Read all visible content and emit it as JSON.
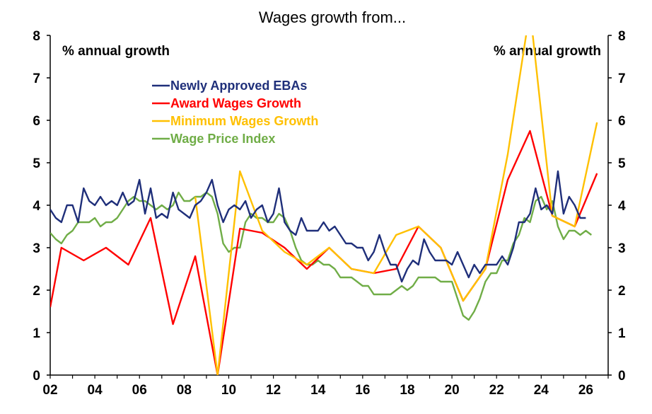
{
  "chart_data": {
    "type": "line",
    "title": "Wages growth from...",
    "left_axis_label": "% annual growth",
    "right_axis_label": "% annual growth",
    "ylim": [
      0,
      8
    ],
    "yticks": [
      0,
      1,
      2,
      3,
      4,
      5,
      6,
      7,
      8
    ],
    "xlim": [
      2002,
      2027
    ],
    "xtick_labels": [
      "02",
      "04",
      "06",
      "08",
      "10",
      "12",
      "14",
      "16",
      "18",
      "20",
      "22",
      "24",
      "26"
    ],
    "grid": false,
    "legend_position": "upper-left",
    "series": [
      {
        "name": "Newly Approved EBAs",
        "color": "#1f2f7a",
        "x": [
          2002.0,
          2002.25,
          2002.5,
          2002.75,
          2003.0,
          2003.25,
          2003.5,
          2003.75,
          2004.0,
          2004.25,
          2004.5,
          2004.75,
          2005.0,
          2005.25,
          2005.5,
          2005.75,
          2006.0,
          2006.25,
          2006.5,
          2006.75,
          2007.0,
          2007.25,
          2007.5,
          2007.75,
          2008.0,
          2008.25,
          2008.5,
          2008.75,
          2009.0,
          2009.25,
          2009.5,
          2009.75,
          2010.0,
          2010.25,
          2010.5,
          2010.75,
          2011.0,
          2011.25,
          2011.5,
          2011.75,
          2012.0,
          2012.25,
          2012.5,
          2012.75,
          2013.0,
          2013.25,
          2013.5,
          2013.75,
          2014.0,
          2014.25,
          2014.5,
          2014.75,
          2015.0,
          2015.25,
          2015.5,
          2015.75,
          2016.0,
          2016.25,
          2016.5,
          2016.75,
          2017.0,
          2017.25,
          2017.5,
          2017.75,
          2018.0,
          2018.25,
          2018.5,
          2018.75,
          2019.0,
          2019.25,
          2019.5,
          2019.75,
          2020.0,
          2020.25,
          2020.5,
          2020.75,
          2021.0,
          2021.25,
          2021.5,
          2021.75,
          2022.0,
          2022.25,
          2022.5,
          2022.75,
          2023.0,
          2023.25,
          2023.5,
          2023.75,
          2024.0,
          2024.25,
          2024.5,
          2024.75,
          2025.0,
          2025.25,
          2025.5,
          2025.75,
          2026.0
        ],
        "values": [
          3.9,
          3.7,
          3.6,
          4.0,
          4.0,
          3.6,
          4.4,
          4.1,
          4.0,
          4.2,
          4.0,
          4.1,
          4.0,
          4.3,
          4.0,
          4.1,
          4.6,
          3.8,
          4.4,
          3.7,
          3.8,
          3.7,
          4.3,
          3.9,
          3.8,
          3.7,
          4.0,
          4.1,
          4.3,
          4.6,
          4.0,
          3.6,
          3.9,
          4.0,
          3.9,
          4.1,
          3.7,
          3.9,
          4.0,
          3.6,
          3.8,
          4.4,
          3.6,
          3.4,
          3.3,
          3.7,
          3.4,
          3.4,
          3.4,
          3.6,
          3.4,
          3.5,
          3.3,
          3.1,
          3.1,
          3.0,
          3.0,
          2.7,
          2.9,
          3.3,
          2.9,
          2.6,
          2.6,
          2.2,
          2.5,
          2.7,
          2.6,
          3.2,
          2.9,
          2.7,
          2.7,
          2.7,
          2.6,
          2.9,
          2.6,
          2.3,
          2.6,
          2.4,
          2.6,
          2.6,
          2.6,
          2.8,
          2.6,
          3.0,
          3.6,
          3.6,
          3.8,
          4.4,
          3.9,
          4.0,
          3.8,
          4.8,
          3.8,
          4.2,
          4.0,
          3.7,
          3.7
        ]
      },
      {
        "name": "Award Wages Growth",
        "color": "#ff0000",
        "x": [
          2002.0,
          2002.5,
          2003.5,
          2004.5,
          2005.5,
          2006.5,
          2007.5,
          2008.5,
          2009.5,
          2010.5,
          2011.5,
          2012.5,
          2013.5,
          2014.5,
          2015.5,
          2016.5,
          2017.5,
          2018.5,
          2019.5,
          2020.5,
          2021.5,
          2022.5,
          2023.5,
          2024.5,
          2025.5,
          2026.5
        ],
        "values": [
          1.6,
          3.0,
          2.7,
          3.0,
          2.6,
          3.7,
          1.2,
          2.8,
          0.0,
          3.45,
          3.35,
          3.0,
          2.5,
          3.0,
          2.5,
          2.4,
          2.5,
          3.5,
          3.0,
          1.75,
          2.5,
          4.6,
          5.75,
          3.75,
          3.5,
          4.75
        ]
      },
      {
        "name": "Minimum Wages Growth",
        "color": "#ffc000",
        "x": [
          2008.5,
          2009.5,
          2010.5,
          2011.5,
          2012.5,
          2013.5,
          2014.5,
          2015.5,
          2016.5,
          2017.5,
          2018.5,
          2019.5,
          2020.5,
          2021.5,
          2022.5,
          2023.5,
          2024.5,
          2025.5,
          2026.5
        ],
        "values": [
          4.2,
          0.0,
          4.8,
          3.4,
          2.9,
          2.6,
          3.0,
          2.5,
          2.4,
          3.3,
          3.5,
          3.0,
          1.75,
          2.5,
          5.2,
          8.6,
          3.75,
          3.5,
          5.95
        ]
      },
      {
        "name": "Wage Price Index",
        "color": "#70ad47",
        "x": [
          2002.0,
          2002.25,
          2002.5,
          2002.75,
          2003.0,
          2003.25,
          2003.5,
          2003.75,
          2004.0,
          2004.25,
          2004.5,
          2004.75,
          2005.0,
          2005.25,
          2005.5,
          2005.75,
          2006.0,
          2006.25,
          2006.5,
          2006.75,
          2007.0,
          2007.25,
          2007.5,
          2007.75,
          2008.0,
          2008.25,
          2008.5,
          2008.75,
          2009.0,
          2009.25,
          2009.5,
          2009.75,
          2010.0,
          2010.25,
          2010.5,
          2010.75,
          2011.0,
          2011.25,
          2011.5,
          2011.75,
          2012.0,
          2012.25,
          2012.5,
          2012.75,
          2013.0,
          2013.25,
          2013.5,
          2013.75,
          2014.0,
          2014.25,
          2014.5,
          2014.75,
          2015.0,
          2015.25,
          2015.5,
          2015.75,
          2016.0,
          2016.25,
          2016.5,
          2016.75,
          2017.0,
          2017.25,
          2017.5,
          2017.75,
          2018.0,
          2018.25,
          2018.5,
          2018.75,
          2019.0,
          2019.25,
          2019.5,
          2019.75,
          2020.0,
          2020.25,
          2020.5,
          2020.75,
          2021.0,
          2021.25,
          2021.5,
          2021.75,
          2022.0,
          2022.25,
          2022.5,
          2022.75,
          2023.0,
          2023.25,
          2023.5,
          2023.75,
          2024.0,
          2024.25,
          2024.5,
          2024.75,
          2025.0,
          2025.25,
          2025.5,
          2025.75,
          2026.0,
          2026.25
        ],
        "values": [
          3.35,
          3.2,
          3.1,
          3.3,
          3.4,
          3.6,
          3.6,
          3.6,
          3.7,
          3.5,
          3.6,
          3.6,
          3.7,
          3.9,
          4.1,
          4.2,
          4.1,
          4.1,
          4.0,
          3.9,
          4.0,
          3.9,
          4.0,
          4.3,
          4.1,
          4.1,
          4.2,
          4.2,
          4.3,
          4.2,
          3.8,
          3.1,
          2.9,
          3.0,
          3.0,
          3.6,
          3.8,
          3.7,
          3.7,
          3.6,
          3.6,
          3.8,
          3.7,
          3.4,
          3.0,
          2.7,
          2.6,
          2.6,
          2.7,
          2.6,
          2.6,
          2.5,
          2.3,
          2.3,
          2.3,
          2.2,
          2.1,
          2.1,
          1.9,
          1.9,
          1.9,
          1.9,
          2.0,
          2.1,
          2.0,
          2.1,
          2.3,
          2.3,
          2.3,
          2.3,
          2.2,
          2.2,
          2.2,
          1.8,
          1.4,
          1.3,
          1.5,
          1.8,
          2.2,
          2.4,
          2.4,
          2.7,
          2.7,
          3.1,
          3.3,
          3.7,
          3.6,
          4.1,
          4.2,
          3.9,
          4.1,
          3.5,
          3.2,
          3.4,
          3.4,
          3.3,
          3.4,
          3.3
        ]
      }
    ]
  }
}
